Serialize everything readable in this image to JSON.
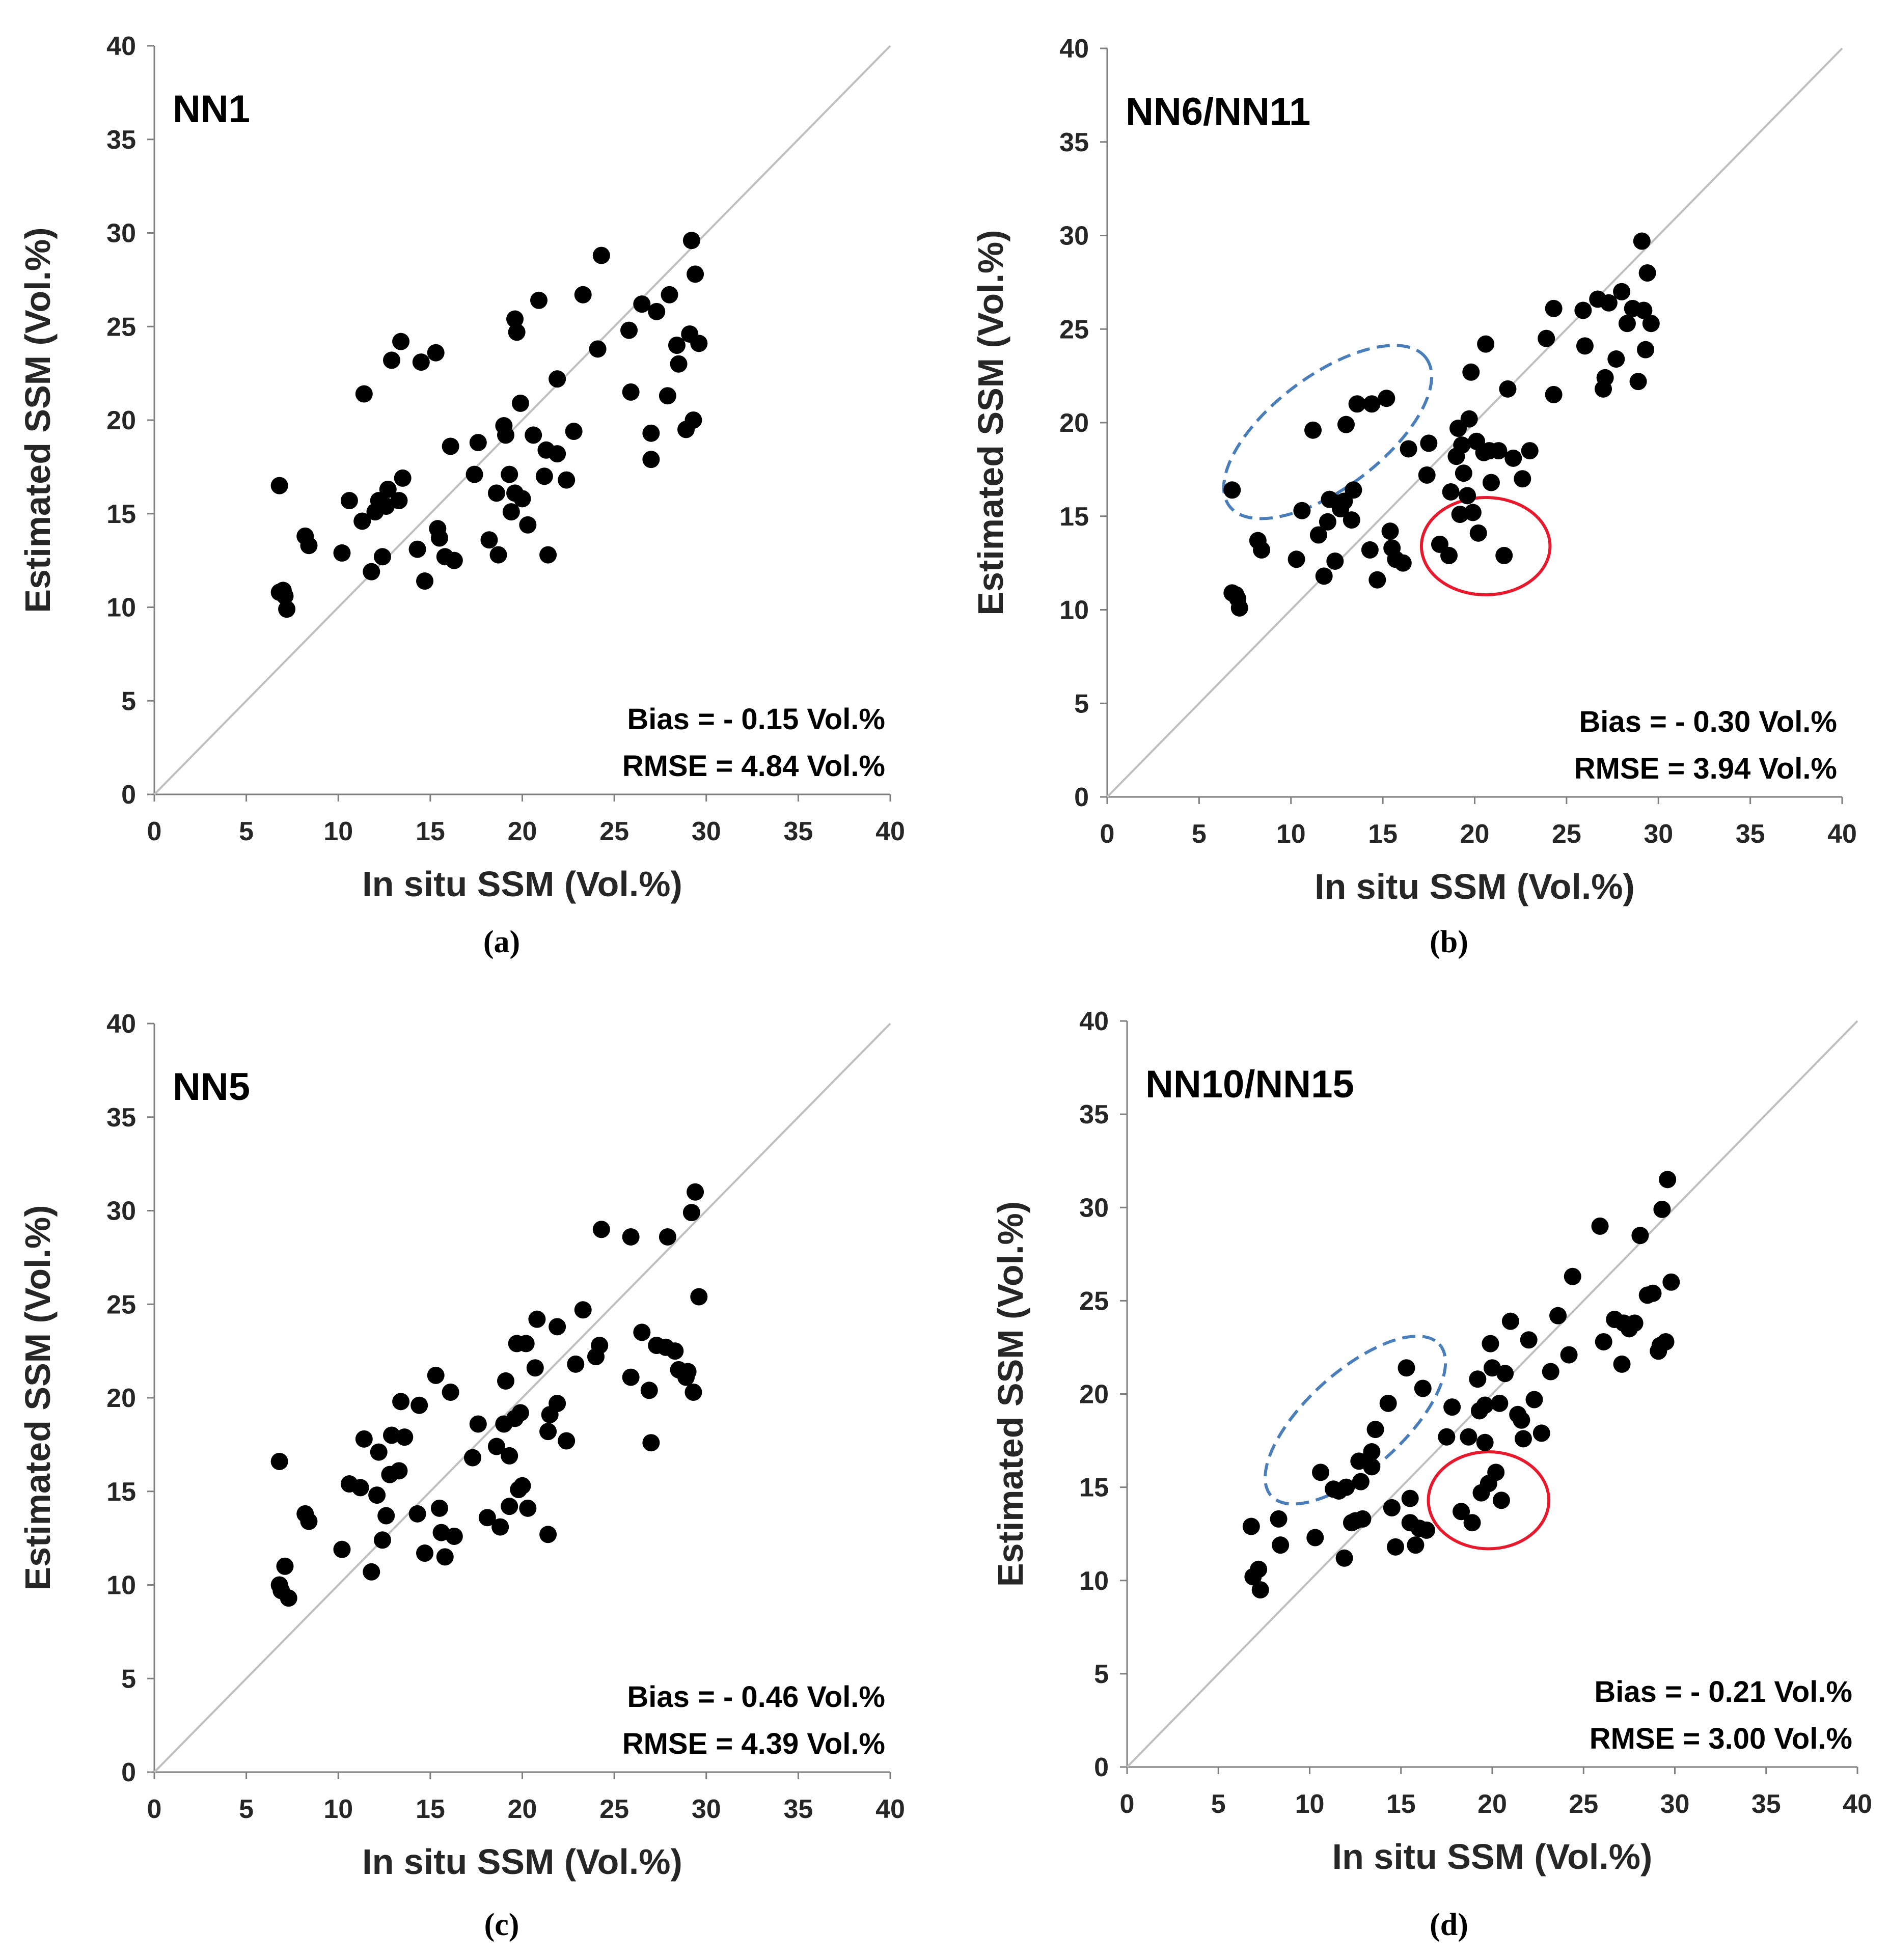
{
  "chart_data": [
    {
      "type": "scatter",
      "panel_id": "a",
      "title": "NN1",
      "caption": "(a)",
      "xlabel": "In situ SSM (Vol.%)",
      "ylabel": "Estimated SSM (Vol.%)",
      "xlim": [
        0,
        40
      ],
      "ylim": [
        0,
        40
      ],
      "ticks": [
        "0",
        "5",
        "10",
        "15",
        "20",
        "25",
        "30",
        "35",
        "40"
      ],
      "reference_line": "1:1",
      "stats": {
        "bias": "Bias = - 0.15 Vol.%",
        "rmse": "RMSE = 4.84 Vol.%"
      },
      "highlights": [],
      "points": [
        [
          6.8,
          16.5
        ],
        [
          6.8,
          10.8
        ],
        [
          7.0,
          10.9
        ],
        [
          7.1,
          10.6
        ],
        [
          7.2,
          9.9
        ],
        [
          8.2,
          13.8
        ],
        [
          8.4,
          13.3
        ],
        [
          10.2,
          12.9
        ],
        [
          10.6,
          15.7
        ],
        [
          11.3,
          14.6
        ],
        [
          11.4,
          21.4
        ],
        [
          11.8,
          11.9
        ],
        [
          12.0,
          15.1
        ],
        [
          12.2,
          15.7
        ],
        [
          12.4,
          12.7
        ],
        [
          12.6,
          15.4
        ],
        [
          12.7,
          16.3
        ],
        [
          12.9,
          23.2
        ],
        [
          13.3,
          15.7
        ],
        [
          13.4,
          24.2
        ],
        [
          13.5,
          16.9
        ],
        [
          14.3,
          13.1
        ],
        [
          14.5,
          23.1
        ],
        [
          14.7,
          11.4
        ],
        [
          15.3,
          23.6
        ],
        [
          15.4,
          14.2
        ],
        [
          15.5,
          13.7
        ],
        [
          15.8,
          12.7
        ],
        [
          16.1,
          18.6
        ],
        [
          16.3,
          12.5
        ],
        [
          17.4,
          17.1
        ],
        [
          17.6,
          18.8
        ],
        [
          18.2,
          13.6
        ],
        [
          18.6,
          16.1
        ],
        [
          18.7,
          12.8
        ],
        [
          19.0,
          19.7
        ],
        [
          19.1,
          19.2
        ],
        [
          19.3,
          17.1
        ],
        [
          19.4,
          15.1
        ],
        [
          19.6,
          16.1
        ],
        [
          19.6,
          25.4
        ],
        [
          19.7,
          24.7
        ],
        [
          19.9,
          20.9
        ],
        [
          20.0,
          15.8
        ],
        [
          20.3,
          14.4
        ],
        [
          20.6,
          19.2
        ],
        [
          20.9,
          26.4
        ],
        [
          21.2,
          17.0
        ],
        [
          21.3,
          18.4
        ],
        [
          21.4,
          12.8
        ],
        [
          21.9,
          22.2
        ],
        [
          21.9,
          18.2
        ],
        [
          22.4,
          16.8
        ],
        [
          22.8,
          19.4
        ],
        [
          23.3,
          26.7
        ],
        [
          24.1,
          23.8
        ],
        [
          24.3,
          28.8
        ],
        [
          25.8,
          24.8
        ],
        [
          25.9,
          21.5
        ],
        [
          26.5,
          26.2
        ],
        [
          27.0,
          19.3
        ],
        [
          27.0,
          17.9
        ],
        [
          27.3,
          25.8
        ],
        [
          27.9,
          21.3
        ],
        [
          28.0,
          26.7
        ],
        [
          28.4,
          24.0
        ],
        [
          28.5,
          23.0
        ],
        [
          28.9,
          19.5
        ],
        [
          29.1,
          24.6
        ],
        [
          29.2,
          29.6
        ],
        [
          29.3,
          20.0
        ],
        [
          29.4,
          27.8
        ],
        [
          29.6,
          24.1
        ]
      ]
    },
    {
      "type": "scatter",
      "panel_id": "b",
      "title": "NN6/NN11",
      "caption": "(b)",
      "xlabel": "In situ SSM (Vol.%)",
      "ylabel": "Estimated SSM (Vol.%)",
      "xlim": [
        0,
        40
      ],
      "ylim": [
        0,
        40
      ],
      "ticks": [
        "0",
        "5",
        "10",
        "15",
        "20",
        "25",
        "30",
        "35",
        "40"
      ],
      "reference_line": "1:1",
      "stats": {
        "bias": "Bias = - 0.30 Vol.%",
        "rmse": "RMSE = 3.94 Vol.%"
      },
      "highlights": [
        {
          "shape": "dashed-ellipse",
          "color": "#4a7ebb",
          "cx": 12.0,
          "cy": 19.5,
          "rx": 6.7,
          "ry": 3.0,
          "rotation_deg": -37
        },
        {
          "shape": "circle",
          "color": "#e8192c",
          "cx": 20.6,
          "cy": 13.4,
          "rx": 3.5,
          "ry": 2.6,
          "rotation_deg": 0
        }
      ],
      "points": [
        [
          6.8,
          16.4
        ],
        [
          6.8,
          10.9
        ],
        [
          7.0,
          10.8
        ],
        [
          7.1,
          10.6
        ],
        [
          7.2,
          10.1
        ],
        [
          8.2,
          13.7
        ],
        [
          8.4,
          13.2
        ],
        [
          10.3,
          12.7
        ],
        [
          10.6,
          15.3
        ],
        [
          11.2,
          19.6
        ],
        [
          11.5,
          14.0
        ],
        [
          11.8,
          11.8
        ],
        [
          12.0,
          14.7
        ],
        [
          12.1,
          15.9
        ],
        [
          12.4,
          12.6
        ],
        [
          12.6,
          15.7
        ],
        [
          12.7,
          15.4
        ],
        [
          12.9,
          15.8
        ],
        [
          13.0,
          19.9
        ],
        [
          13.3,
          14.8
        ],
        [
          13.4,
          16.4
        ],
        [
          13.6,
          21.0
        ],
        [
          14.3,
          13.2
        ],
        [
          14.4,
          21.0
        ],
        [
          14.7,
          11.6
        ],
        [
          15.2,
          21.3
        ],
        [
          15.4,
          14.2
        ],
        [
          15.5,
          13.3
        ],
        [
          15.7,
          12.7
        ],
        [
          16.1,
          12.5
        ],
        [
          16.4,
          18.6
        ],
        [
          17.4,
          17.2
        ],
        [
          17.5,
          18.9
        ],
        [
          18.1,
          13.5
        ],
        [
          18.6,
          12.9
        ],
        [
          18.7,
          16.3
        ],
        [
          19.0,
          18.2
        ],
        [
          19.1,
          19.7
        ],
        [
          19.2,
          15.1
        ],
        [
          19.3,
          18.8
        ],
        [
          19.4,
          17.3
        ],
        [
          19.6,
          16.1
        ],
        [
          19.7,
          20.2
        ],
        [
          19.8,
          22.7
        ],
        [
          19.9,
          15.2
        ],
        [
          20.1,
          19.0
        ],
        [
          20.2,
          14.1
        ],
        [
          20.5,
          18.4
        ],
        [
          20.6,
          24.2
        ],
        [
          20.8,
          18.5
        ],
        [
          20.9,
          16.8
        ],
        [
          21.3,
          18.5
        ],
        [
          21.6,
          12.9
        ],
        [
          21.8,
          21.8
        ],
        [
          22.1,
          18.1
        ],
        [
          22.6,
          17.0
        ],
        [
          23.0,
          18.5
        ],
        [
          23.9,
          24.5
        ],
        [
          24.3,
          21.5
        ],
        [
          24.3,
          26.1
        ],
        [
          25.9,
          26.0
        ],
        [
          26.0,
          24.1
        ],
        [
          26.7,
          26.6
        ],
        [
          27.0,
          21.8
        ],
        [
          27.1,
          22.4
        ],
        [
          27.3,
          26.4
        ],
        [
          27.7,
          23.4
        ],
        [
          28.0,
          27.0
        ],
        [
          28.3,
          25.3
        ],
        [
          28.6,
          26.1
        ],
        [
          28.9,
          22.2
        ],
        [
          29.1,
          29.7
        ],
        [
          29.2,
          26.0
        ],
        [
          29.3,
          23.9
        ],
        [
          29.4,
          28.0
        ],
        [
          29.6,
          25.3
        ]
      ]
    },
    {
      "type": "scatter",
      "panel_id": "c",
      "title": "NN5",
      "caption": "(c)",
      "xlabel": "In situ SSM (Vol.%)",
      "ylabel": "Estimated SSM (Vol.%)",
      "xlim": [
        0,
        40
      ],
      "ylim": [
        0,
        40
      ],
      "ticks": [
        "0",
        "5",
        "10",
        "15",
        "20",
        "25",
        "30",
        "35",
        "40"
      ],
      "reference_line": "1:1",
      "stats": {
        "bias": "Bias = - 0.46 Vol.%",
        "rmse": "RMSE = 4.39 Vol.%"
      },
      "highlights": [],
      "points": [
        [
          6.8,
          16.6
        ],
        [
          6.8,
          10.0
        ],
        [
          6.9,
          9.7
        ],
        [
          7.1,
          11.0
        ],
        [
          7.3,
          9.3
        ],
        [
          8.2,
          13.8
        ],
        [
          8.4,
          13.4
        ],
        [
          10.2,
          11.9
        ],
        [
          10.6,
          15.4
        ],
        [
          11.2,
          15.2
        ],
        [
          11.4,
          17.8
        ],
        [
          11.8,
          10.7
        ],
        [
          12.1,
          14.8
        ],
        [
          12.2,
          17.1
        ],
        [
          12.4,
          12.4
        ],
        [
          12.6,
          13.7
        ],
        [
          12.8,
          15.9
        ],
        [
          12.9,
          18.0
        ],
        [
          13.3,
          16.1
        ],
        [
          13.4,
          19.8
        ],
        [
          13.6,
          17.9
        ],
        [
          14.3,
          13.8
        ],
        [
          14.4,
          19.6
        ],
        [
          14.7,
          11.7
        ],
        [
          15.3,
          21.2
        ],
        [
          15.5,
          14.1
        ],
        [
          15.6,
          12.8
        ],
        [
          15.8,
          11.5
        ],
        [
          16.1,
          20.3
        ],
        [
          16.3,
          12.6
        ],
        [
          17.3,
          16.8
        ],
        [
          17.6,
          18.6
        ],
        [
          18.1,
          13.6
        ],
        [
          18.6,
          17.4
        ],
        [
          18.8,
          13.1
        ],
        [
          19.0,
          18.6
        ],
        [
          19.1,
          20.9
        ],
        [
          19.3,
          14.2
        ],
        [
          19.3,
          16.9
        ],
        [
          19.6,
          18.9
        ],
        [
          19.7,
          22.9
        ],
        [
          19.8,
          15.1
        ],
        [
          19.9,
          19.2
        ],
        [
          20.0,
          15.3
        ],
        [
          20.2,
          22.9
        ],
        [
          20.3,
          14.1
        ],
        [
          20.7,
          21.6
        ],
        [
          20.8,
          24.2
        ],
        [
          21.4,
          18.2
        ],
        [
          21.4,
          12.7
        ],
        [
          21.5,
          19.1
        ],
        [
          21.9,
          19.7
        ],
        [
          21.9,
          23.8
        ],
        [
          22.4,
          17.7
        ],
        [
          22.9,
          21.8
        ],
        [
          23.3,
          24.7
        ],
        [
          24.0,
          22.2
        ],
        [
          24.2,
          22.8
        ],
        [
          24.3,
          29.0
        ],
        [
          25.9,
          28.6
        ],
        [
          25.9,
          21.1
        ],
        [
          26.5,
          23.5
        ],
        [
          26.9,
          20.4
        ],
        [
          27.0,
          17.6
        ],
        [
          27.3,
          22.8
        ],
        [
          27.8,
          22.7
        ],
        [
          27.9,
          28.6
        ],
        [
          28.3,
          22.5
        ],
        [
          28.5,
          21.5
        ],
        [
          28.9,
          21.1
        ],
        [
          29.0,
          21.4
        ],
        [
          29.2,
          29.9
        ],
        [
          29.3,
          20.3
        ],
        [
          29.4,
          31.0
        ],
        [
          29.6,
          25.4
        ]
      ]
    },
    {
      "type": "scatter",
      "panel_id": "d",
      "title": "NN10/NN15",
      "caption": "(d)",
      "xlabel": "In situ SSM (Vol.%)",
      "ylabel": "Estimated SSM (Vol.%)",
      "xlim": [
        0,
        40
      ],
      "ylim": [
        0,
        40
      ],
      "ticks": [
        "0",
        "5",
        "10",
        "15",
        "20",
        "25",
        "30",
        "35",
        "40"
      ],
      "reference_line": "1:1",
      "stats": {
        "bias": "Bias = - 0.21 Vol.%",
        "rmse": "RMSE = 3.00 Vol.%"
      },
      "highlights": [
        {
          "shape": "dashed-ellipse",
          "color": "#4a7ebb",
          "cx": 12.5,
          "cy": 18.6,
          "rx": 6.2,
          "ry": 2.6,
          "rotation_deg": -42
        },
        {
          "shape": "circle",
          "color": "#e8192c",
          "cx": 19.8,
          "cy": 14.3,
          "rx": 3.3,
          "ry": 2.6,
          "rotation_deg": 0
        }
      ],
      "points": [
        [
          6.8,
          12.9
        ],
        [
          6.9,
          10.2
        ],
        [
          7.2,
          10.6
        ],
        [
          7.3,
          9.5
        ],
        [
          8.3,
          13.3
        ],
        [
          8.4,
          11.9
        ],
        [
          10.3,
          12.3
        ],
        [
          10.6,
          15.8
        ],
        [
          11.3,
          14.9
        ],
        [
          11.6,
          14.8
        ],
        [
          11.9,
          11.2
        ],
        [
          12.0,
          15.0
        ],
        [
          12.3,
          13.1
        ],
        [
          12.5,
          13.2
        ],
        [
          12.7,
          16.4
        ],
        [
          12.8,
          15.3
        ],
        [
          12.9,
          13.3
        ],
        [
          13.4,
          16.9
        ],
        [
          13.4,
          16.1
        ],
        [
          13.6,
          18.1
        ],
        [
          14.3,
          19.5
        ],
        [
          14.5,
          13.9
        ],
        [
          14.7,
          11.8
        ],
        [
          15.3,
          21.4
        ],
        [
          15.5,
          14.4
        ],
        [
          15.5,
          13.1
        ],
        [
          15.8,
          11.9
        ],
        [
          16.0,
          12.8
        ],
        [
          16.2,
          20.3
        ],
        [
          16.4,
          12.7
        ],
        [
          17.5,
          17.7
        ],
        [
          17.8,
          19.3
        ],
        [
          18.3,
          13.7
        ],
        [
          18.7,
          17.7
        ],
        [
          18.9,
          13.1
        ],
        [
          19.2,
          20.8
        ],
        [
          19.3,
          19.1
        ],
        [
          19.4,
          14.7
        ],
        [
          19.6,
          17.4
        ],
        [
          19.6,
          19.4
        ],
        [
          19.8,
          15.2
        ],
        [
          19.9,
          22.7
        ],
        [
          20.0,
          21.4
        ],
        [
          20.2,
          15.8
        ],
        [
          20.4,
          19.5
        ],
        [
          20.5,
          14.3
        ],
        [
          20.7,
          21.1
        ],
        [
          21.0,
          23.9
        ],
        [
          21.4,
          18.9
        ],
        [
          21.6,
          18.6
        ],
        [
          21.7,
          17.6
        ],
        [
          22.0,
          22.9
        ],
        [
          22.3,
          19.7
        ],
        [
          22.7,
          17.9
        ],
        [
          23.2,
          21.2
        ],
        [
          23.6,
          24.2
        ],
        [
          24.2,
          22.1
        ],
        [
          24.4,
          26.3
        ],
        [
          25.9,
          29.0
        ],
        [
          26.1,
          22.8
        ],
        [
          26.7,
          24.0
        ],
        [
          27.1,
          21.6
        ],
        [
          27.2,
          23.8
        ],
        [
          27.5,
          23.5
        ],
        [
          27.8,
          23.8
        ],
        [
          28.1,
          28.5
        ],
        [
          28.5,
          25.3
        ],
        [
          28.8,
          25.4
        ],
        [
          29.1,
          22.3
        ],
        [
          29.2,
          22.6
        ],
        [
          29.3,
          29.9
        ],
        [
          29.5,
          22.8
        ],
        [
          29.6,
          31.5
        ],
        [
          29.8,
          26.0
        ]
      ]
    }
  ]
}
